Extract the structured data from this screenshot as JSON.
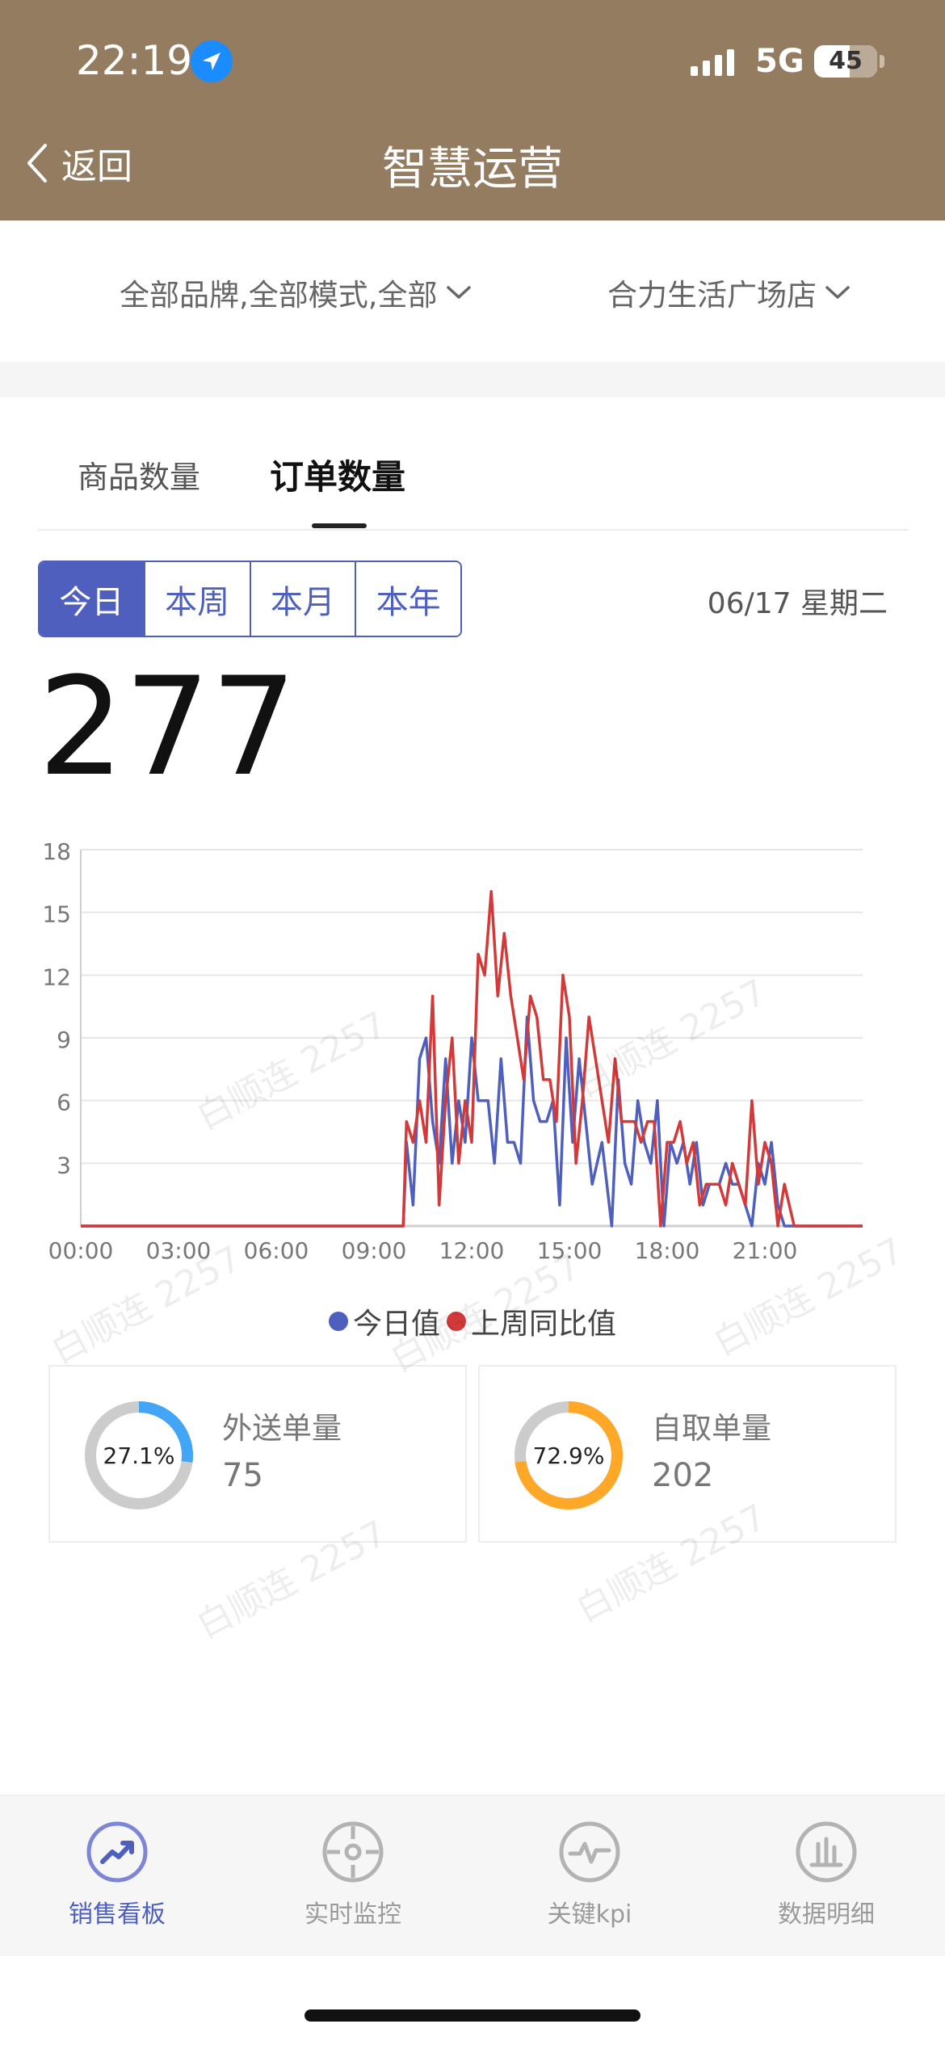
{
  "status_bar": {
    "time": "22:19",
    "network": "5G",
    "battery": "45"
  },
  "nav": {
    "back_label": "返回",
    "title": "智慧运营"
  },
  "filters": {
    "brand": "全部品牌,全部模式,全部",
    "store": "合力生活广场店"
  },
  "tabs": [
    {
      "label": "商品数量"
    },
    {
      "label": "订单数量"
    }
  ],
  "periods": [
    {
      "label": "今日"
    },
    {
      "label": "本周"
    },
    {
      "label": "本月"
    },
    {
      "label": "本年"
    }
  ],
  "date_label": "06/17 星期二",
  "total_orders": "277",
  "colors": {
    "brand": "#937c5f",
    "accent": "#4f5fbe",
    "today": "#4f5fbe",
    "last_week": "#d23a3a",
    "delivery": "#42a5f5",
    "pickup": "#ffa726"
  },
  "chart_data": {
    "type": "line",
    "title": "",
    "xlabel": "",
    "ylabel": "",
    "ylim": [
      0,
      18
    ],
    "xlim": [
      0,
      24
    ],
    "y_ticks": [
      "3",
      "6",
      "9",
      "12",
      "15",
      "18"
    ],
    "x_ticks": [
      "00:00",
      "03:00",
      "06:00",
      "09:00",
      "12:00",
      "15:00",
      "18:00",
      "21:00"
    ],
    "x_tick_values": [
      0,
      3,
      6,
      9,
      12,
      15,
      18,
      21
    ],
    "grid": true,
    "legend": "bottom",
    "series": [
      {
        "name": "今日值",
        "color": "#4f5fbe",
        "points": [
          [
            0,
            0
          ],
          [
            9.9,
            0
          ],
          [
            10,
            4
          ],
          [
            10.2,
            1
          ],
          [
            10.4,
            8
          ],
          [
            10.6,
            9
          ],
          [
            10.8,
            5
          ],
          [
            11,
            3
          ],
          [
            11.2,
            8
          ],
          [
            11.4,
            3
          ],
          [
            11.6,
            6
          ],
          [
            11.8,
            4
          ],
          [
            12,
            9
          ],
          [
            12.2,
            6
          ],
          [
            12.5,
            6
          ],
          [
            12.7,
            3
          ],
          [
            12.9,
            8
          ],
          [
            13.1,
            4
          ],
          [
            13.3,
            4
          ],
          [
            13.5,
            3
          ],
          [
            13.7,
            10
          ],
          [
            13.9,
            6
          ],
          [
            14.1,
            5
          ],
          [
            14.3,
            5
          ],
          [
            14.5,
            6
          ],
          [
            14.7,
            1
          ],
          [
            14.9,
            9
          ],
          [
            15.1,
            4
          ],
          [
            15.3,
            8
          ],
          [
            15.5,
            5
          ],
          [
            15.7,
            2
          ],
          [
            16,
            4
          ],
          [
            16.3,
            0
          ],
          [
            16.5,
            7
          ],
          [
            16.7,
            3
          ],
          [
            16.9,
            2
          ],
          [
            17.1,
            6
          ],
          [
            17.3,
            4
          ],
          [
            17.5,
            3
          ],
          [
            17.7,
            6
          ],
          [
            17.9,
            0
          ],
          [
            18.1,
            4
          ],
          [
            18.3,
            3
          ],
          [
            18.5,
            4
          ],
          [
            18.7,
            2
          ],
          [
            18.9,
            4
          ],
          [
            19.1,
            1
          ],
          [
            19.3,
            2
          ],
          [
            19.6,
            2
          ],
          [
            19.8,
            3
          ],
          [
            20,
            2
          ],
          [
            20.2,
            2
          ],
          [
            20.4,
            1
          ],
          [
            20.6,
            0
          ],
          [
            20.8,
            3
          ],
          [
            21,
            2
          ],
          [
            21.2,
            4
          ],
          [
            21.4,
            1
          ],
          [
            21.6,
            0
          ],
          [
            24,
            0
          ]
        ]
      },
      {
        "name": "上周同比值",
        "color": "#d23a3a",
        "points": [
          [
            0,
            0
          ],
          [
            9.9,
            0
          ],
          [
            10,
            5
          ],
          [
            10.2,
            4
          ],
          [
            10.4,
            6
          ],
          [
            10.6,
            4
          ],
          [
            10.8,
            11
          ],
          [
            11,
            1
          ],
          [
            11.2,
            6
          ],
          [
            11.4,
            9
          ],
          [
            11.6,
            3
          ],
          [
            11.8,
            6
          ],
          [
            12,
            4
          ],
          [
            12.2,
            13
          ],
          [
            12.4,
            12
          ],
          [
            12.6,
            16
          ],
          [
            12.8,
            11
          ],
          [
            13,
            14
          ],
          [
            13.2,
            11
          ],
          [
            13.4,
            9
          ],
          [
            13.6,
            7
          ],
          [
            13.8,
            11
          ],
          [
            14,
            10
          ],
          [
            14.2,
            7
          ],
          [
            14.4,
            7
          ],
          [
            14.6,
            5
          ],
          [
            14.8,
            12
          ],
          [
            15,
            10
          ],
          [
            15.2,
            3
          ],
          [
            15.4,
            6
          ],
          [
            15.6,
            10
          ],
          [
            15.8,
            8
          ],
          [
            16,
            6
          ],
          [
            16.2,
            4
          ],
          [
            16.4,
            8
          ],
          [
            16.6,
            5
          ],
          [
            16.8,
            5
          ],
          [
            17,
            5
          ],
          [
            17.2,
            4
          ],
          [
            17.4,
            5
          ],
          [
            17.6,
            5
          ],
          [
            17.8,
            0
          ],
          [
            18,
            4
          ],
          [
            18.2,
            4
          ],
          [
            18.4,
            5
          ],
          [
            18.6,
            3
          ],
          [
            18.8,
            4
          ],
          [
            19,
            1
          ],
          [
            19.2,
            2
          ],
          [
            19.4,
            2
          ],
          [
            19.6,
            2
          ],
          [
            19.8,
            1
          ],
          [
            20,
            3
          ],
          [
            20.2,
            2
          ],
          [
            20.4,
            1
          ],
          [
            20.6,
            6
          ],
          [
            20.8,
            2
          ],
          [
            21,
            4
          ],
          [
            21.2,
            3
          ],
          [
            21.4,
            0
          ],
          [
            21.6,
            2
          ],
          [
            21.9,
            0
          ],
          [
            24,
            0
          ]
        ]
      }
    ]
  },
  "cards": [
    {
      "title": "外送单量",
      "value": "75",
      "percent_label": "27.1%",
      "percent": 27.1
    },
    {
      "title": "自取单量",
      "value": "202",
      "percent_label": "72.9%",
      "percent": 72.9
    }
  ],
  "watermark": "白顺连 2257",
  "tabbar": [
    {
      "label": "销售看板",
      "icon": "trend-up-icon"
    },
    {
      "label": "实时监控",
      "icon": "target-icon"
    },
    {
      "label": "关键kpi",
      "icon": "pulse-icon"
    },
    {
      "label": "数据明细",
      "icon": "bar-chart-icon"
    }
  ]
}
